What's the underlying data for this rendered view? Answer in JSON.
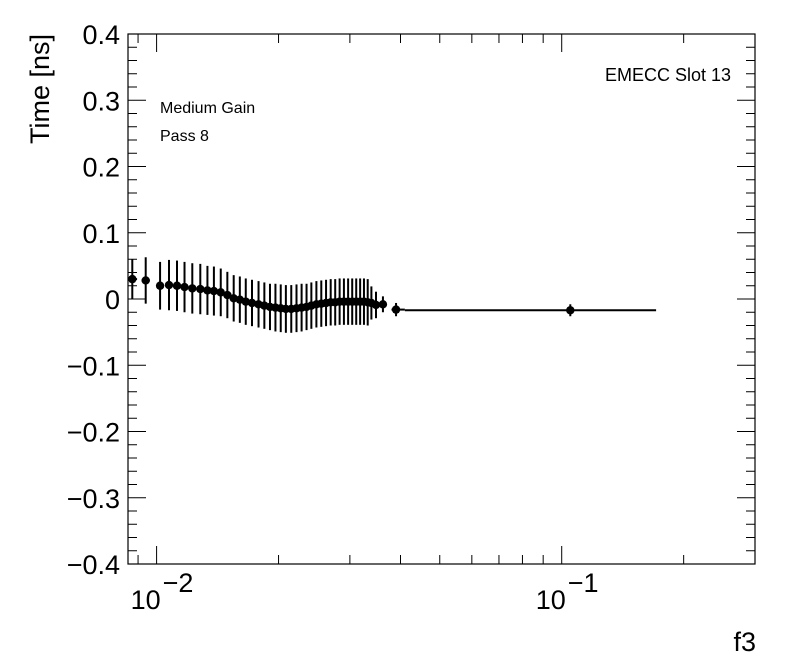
{
  "chart_data": {
    "type": "scatter",
    "xlabel": "f3",
    "ylabel": "Time [ns]",
    "xscale": "log",
    "xlim": [
      0.0085,
      0.3
    ],
    "ylim": [
      -0.4,
      0.4
    ],
    "yticks": [
      {
        "v": 0.4,
        "label": "0.4"
      },
      {
        "v": 0.3,
        "label": "0.3"
      },
      {
        "v": 0.2,
        "label": "0.2"
      },
      {
        "v": 0.1,
        "label": "0.1"
      },
      {
        "v": 0,
        "label": "0"
      },
      {
        "v": -0.1,
        "label": "−0.1"
      },
      {
        "v": -0.2,
        "label": "−0.2"
      },
      {
        "v": -0.3,
        "label": "−0.3"
      },
      {
        "v": -0.4,
        "label": "−0.4"
      }
    ],
    "xticks": [
      {
        "v": 0.01,
        "base": "10",
        "exp": "−2"
      },
      {
        "v": 0.1,
        "base": "10",
        "exp": "−1"
      }
    ],
    "grid": false,
    "annotations": {
      "top_right": "EMECC Slot 13",
      "line1": "Medium Gain",
      "line2": "Pass 8"
    },
    "color": "#000000",
    "points": [
      {
        "x": 0.00871,
        "y": 0.03,
        "xlo": 0.0085,
        "xhi": 0.00895,
        "yerr": 0.03
      },
      {
        "x": 0.0094,
        "y": 0.028,
        "xlo": 0.00918,
        "xhi": 0.00962,
        "yerr": 0.035
      },
      {
        "x": 0.0102,
        "y": 0.02,
        "xlo": 0.01,
        "xhi": 0.0104,
        "yerr": 0.036
      },
      {
        "x": 0.01073,
        "y": 0.021,
        "xlo": 0.01055,
        "xhi": 0.0109,
        "yerr": 0.038
      },
      {
        "x": 0.01123,
        "y": 0.02,
        "xlo": 0.01105,
        "xhi": 0.0114,
        "yerr": 0.038
      },
      {
        "x": 0.01172,
        "y": 0.018,
        "xlo": 0.01155,
        "xhi": 0.0119,
        "yerr": 0.038
      },
      {
        "x": 0.01225,
        "y": 0.016,
        "xlo": 0.01205,
        "xhi": 0.01245,
        "yerr": 0.038
      },
      {
        "x": 0.01282,
        "y": 0.015,
        "xlo": 0.01262,
        "xhi": 0.01302,
        "yerr": 0.038
      },
      {
        "x": 0.01335,
        "y": 0.013,
        "xlo": 0.01318,
        "xhi": 0.01352,
        "yerr": 0.037
      },
      {
        "x": 0.01385,
        "y": 0.012,
        "xlo": 0.01368,
        "xhi": 0.01402,
        "yerr": 0.037
      },
      {
        "x": 0.0144,
        "y": 0.01,
        "xlo": 0.01422,
        "xhi": 0.01458,
        "yerr": 0.036
      },
      {
        "x": 0.01495,
        "y": 0.006,
        "xlo": 0.01478,
        "xhi": 0.01512,
        "yerr": 0.035
      },
      {
        "x": 0.0155,
        "y": 0.001,
        "xlo": 0.01533,
        "xhi": 0.01567,
        "yerr": 0.035
      },
      {
        "x": 0.01605,
        "y": -0.001,
        "xlo": 0.01588,
        "xhi": 0.01622,
        "yerr": 0.035
      },
      {
        "x": 0.0166,
        "y": -0.004,
        "xlo": 0.01643,
        "xhi": 0.01677,
        "yerr": 0.035
      },
      {
        "x": 0.0172,
        "y": -0.006,
        "xlo": 0.01702,
        "xhi": 0.01738,
        "yerr": 0.035
      },
      {
        "x": 0.01785,
        "y": -0.008,
        "xlo": 0.01767,
        "xhi": 0.01803,
        "yerr": 0.035
      },
      {
        "x": 0.01845,
        "y": -0.01,
        "xlo": 0.01827,
        "xhi": 0.01863,
        "yerr": 0.035
      },
      {
        "x": 0.01905,
        "y": -0.012,
        "xlo": 0.01887,
        "xhi": 0.01923,
        "yerr": 0.035
      },
      {
        "x": 0.01965,
        "y": -0.013,
        "xlo": 0.01947,
        "xhi": 0.01983,
        "yerr": 0.036
      },
      {
        "x": 0.02025,
        "y": -0.014,
        "xlo": 0.02007,
        "xhi": 0.02043,
        "yerr": 0.036
      },
      {
        "x": 0.02085,
        "y": -0.015,
        "xlo": 0.02067,
        "xhi": 0.02103,
        "yerr": 0.036
      },
      {
        "x": 0.0215,
        "y": -0.015,
        "xlo": 0.02132,
        "xhi": 0.02168,
        "yerr": 0.036
      },
      {
        "x": 0.02215,
        "y": -0.014,
        "xlo": 0.02197,
        "xhi": 0.02233,
        "yerr": 0.036
      },
      {
        "x": 0.0228,
        "y": -0.013,
        "xlo": 0.02262,
        "xhi": 0.02298,
        "yerr": 0.036
      },
      {
        "x": 0.02345,
        "y": -0.012,
        "xlo": 0.02327,
        "xhi": 0.02363,
        "yerr": 0.035
      },
      {
        "x": 0.0241,
        "y": -0.01,
        "xlo": 0.02392,
        "xhi": 0.02428,
        "yerr": 0.035
      },
      {
        "x": 0.0248,
        "y": -0.008,
        "xlo": 0.02462,
        "xhi": 0.02498,
        "yerr": 0.035
      },
      {
        "x": 0.0255,
        "y": -0.007,
        "xlo": 0.02532,
        "xhi": 0.02568,
        "yerr": 0.035
      },
      {
        "x": 0.0262,
        "y": -0.006,
        "xlo": 0.02602,
        "xhi": 0.02638,
        "yerr": 0.035
      },
      {
        "x": 0.0269,
        "y": -0.005,
        "xlo": 0.02672,
        "xhi": 0.02708,
        "yerr": 0.035
      },
      {
        "x": 0.0276,
        "y": -0.005,
        "xlo": 0.02742,
        "xhi": 0.02778,
        "yerr": 0.035
      },
      {
        "x": 0.0283,
        "y": -0.004,
        "xlo": 0.02812,
        "xhi": 0.02848,
        "yerr": 0.035
      },
      {
        "x": 0.029,
        "y": -0.004,
        "xlo": 0.02882,
        "xhi": 0.02918,
        "yerr": 0.035
      },
      {
        "x": 0.0297,
        "y": -0.004,
        "xlo": 0.02952,
        "xhi": 0.02988,
        "yerr": 0.035
      },
      {
        "x": 0.0304,
        "y": -0.004,
        "xlo": 0.03022,
        "xhi": 0.03058,
        "yerr": 0.035
      },
      {
        "x": 0.0311,
        "y": -0.004,
        "xlo": 0.03092,
        "xhi": 0.03128,
        "yerr": 0.035
      },
      {
        "x": 0.0318,
        "y": -0.004,
        "xlo": 0.03162,
        "xhi": 0.03198,
        "yerr": 0.035
      },
      {
        "x": 0.0325,
        "y": -0.004,
        "xlo": 0.03232,
        "xhi": 0.03268,
        "yerr": 0.035
      },
      {
        "x": 0.0332,
        "y": -0.005,
        "xlo": 0.03302,
        "xhi": 0.03338,
        "yerr": 0.035
      },
      {
        "x": 0.0339,
        "y": -0.006,
        "xlo": 0.03372,
        "xhi": 0.03408,
        "yerr": 0.025
      },
      {
        "x": 0.0348,
        "y": -0.009,
        "xlo": 0.0345,
        "xhi": 0.0351,
        "yerr": 0.02
      },
      {
        "x": 0.0362,
        "y": -0.008,
        "xlo": 0.0358,
        "xhi": 0.0366,
        "yerr": 0.012
      },
      {
        "x": 0.039,
        "y": -0.016,
        "xlo": 0.038,
        "xhi": 0.041,
        "yerr": 0.01
      },
      {
        "x": 0.105,
        "y": -0.017,
        "xlo": 0.041,
        "xhi": 0.171,
        "yerr": 0.009
      }
    ]
  }
}
